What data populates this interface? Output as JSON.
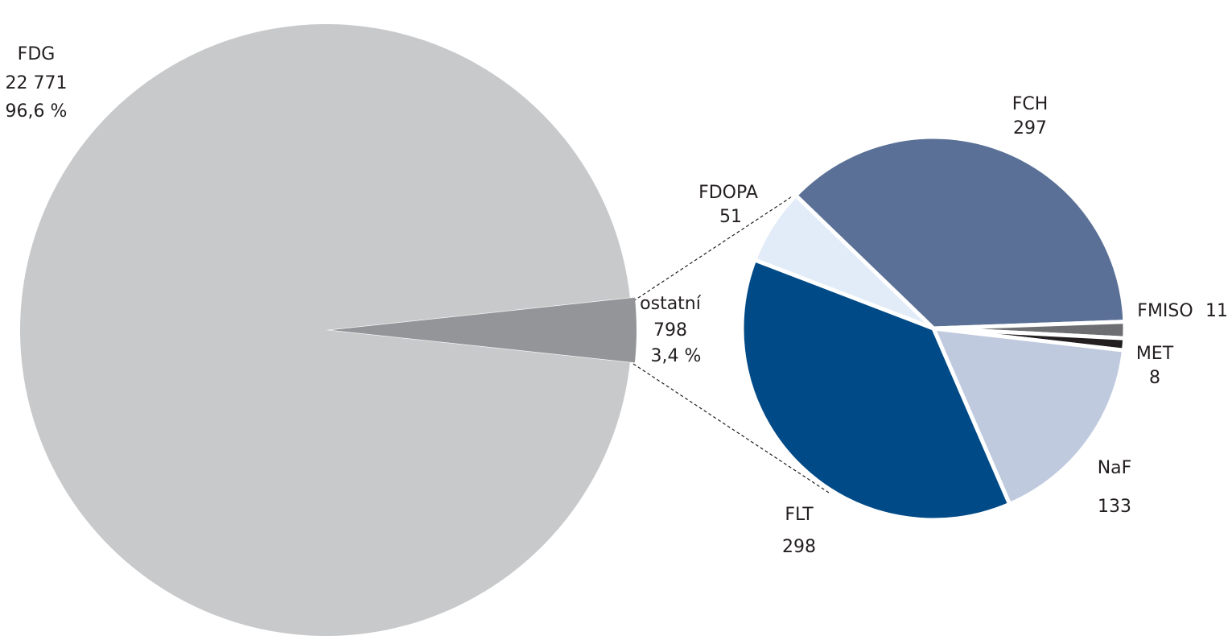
{
  "chart_data": [
    {
      "type": "pie",
      "categories": [
        "FDG",
        "ostatní"
      ],
      "values": [
        22771,
        798
      ],
      "value_labels": [
        "22 771",
        "798"
      ],
      "percents": [
        96.6,
        3.4
      ],
      "percent_labels": [
        "96,6 %",
        "3,4 %"
      ],
      "colors": [
        "#c8c9cb",
        "#939598"
      ]
    },
    {
      "type": "pie",
      "categories": [
        "FCH",
        "FMISO",
        "MET",
        "NaF",
        "FLT",
        "FDOPA"
      ],
      "values": [
        297,
        11,
        8,
        133,
        298,
        51
      ],
      "colors": [
        "#5a7096",
        "#6d6e71",
        "#231f20",
        "#bfcadf",
        "#004a87",
        "#e1ecf8"
      ]
    }
  ]
}
